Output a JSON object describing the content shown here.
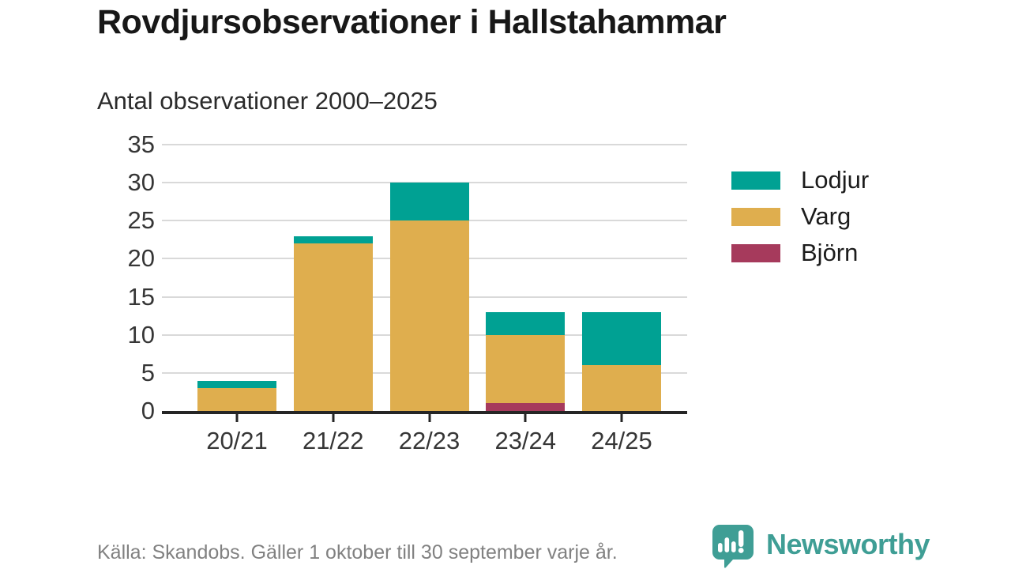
{
  "title": "Rovdjursobservationer i Hallstahammar",
  "subtitle": "Antal observationer 2000–2025",
  "footer": {
    "source": "Källa: Skandobs. Gäller 1 oktober till 30 september varje år."
  },
  "branding": {
    "name": "Newsworthy",
    "color": "#3f9e95",
    "icon": "speech-bubble-bar-chart-exclamation"
  },
  "colors": {
    "lodjur": "#00a193",
    "varg": "#dfae4e",
    "bjorn": "#a63a5c",
    "grid": "#d9d9d9",
    "axis": "#252525",
    "text": "#363636",
    "muted": "#818181"
  },
  "chart_data": {
    "type": "bar",
    "stacked": true,
    "title": "Rovdjursobservationer i Hallstahammar",
    "subtitle": "Antal observationer 2000–2025",
    "xlabel": "",
    "ylabel": "",
    "categories": [
      "20/21",
      "21/22",
      "22/23",
      "23/24",
      "24/25"
    ],
    "series": [
      {
        "name": "Björn",
        "color": "#a63a5c",
        "values": [
          0,
          0,
          0,
          1,
          0
        ]
      },
      {
        "name": "Varg",
        "color": "#dfae4e",
        "values": [
          3,
          22,
          25,
          9,
          6
        ]
      },
      {
        "name": "Lodjur",
        "color": "#00a193",
        "values": [
          1,
          1,
          5,
          3,
          7
        ]
      }
    ],
    "totals": [
      4,
      23,
      30,
      13,
      13
    ],
    "ylim": [
      0,
      35
    ],
    "yticks": [
      0,
      5,
      10,
      15,
      20,
      25,
      30,
      35
    ],
    "grid": "horizontal",
    "legend_position": "right"
  },
  "legend": {
    "items": [
      {
        "label": "Lodjur",
        "color": "#00a193"
      },
      {
        "label": "Varg",
        "color": "#dfae4e"
      },
      {
        "label": "Björn",
        "color": "#a63a5c"
      }
    ]
  }
}
